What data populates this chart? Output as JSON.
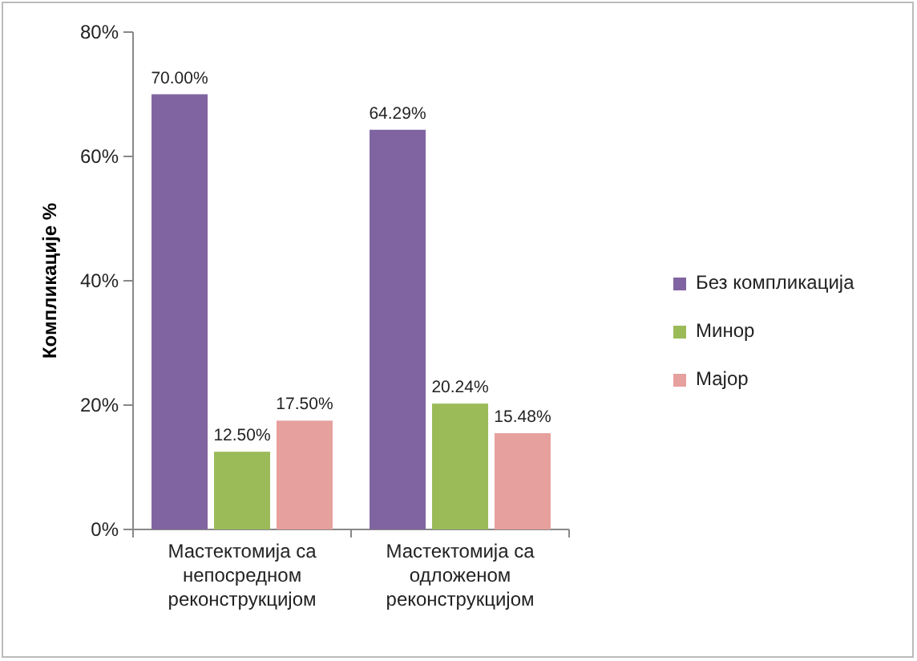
{
  "chart_data": {
    "type": "bar",
    "ylabel": "Компликације %",
    "categories": [
      "Мастектомија са непосредном реконструкцијом",
      "Мастектомија са одложеном реконструкцијом"
    ],
    "series": [
      {
        "name": "Без компликација",
        "color": "#8064a2",
        "values": [
          70.0,
          64.29
        ],
        "value_labels": [
          "70.00%",
          "64.29%"
        ]
      },
      {
        "name": "Минор",
        "color": "#9bbb59",
        "values": [
          12.5,
          20.24
        ],
        "value_labels": [
          "12.50%",
          "20.24%"
        ]
      },
      {
        "name": "Мајор",
        "color": "#e6a09e",
        "values": [
          17.5,
          15.48
        ],
        "value_labels": [
          "17.50%",
          "15.48%"
        ]
      }
    ],
    "ylim": [
      0,
      80
    ],
    "yticks": [
      {
        "value": 0,
        "label": "0%"
      },
      {
        "value": 20,
        "label": "20%"
      },
      {
        "value": 40,
        "label": "40%"
      },
      {
        "value": 60,
        "label": "60%"
      },
      {
        "value": 80,
        "label": "80%"
      }
    ],
    "legend": "right"
  }
}
